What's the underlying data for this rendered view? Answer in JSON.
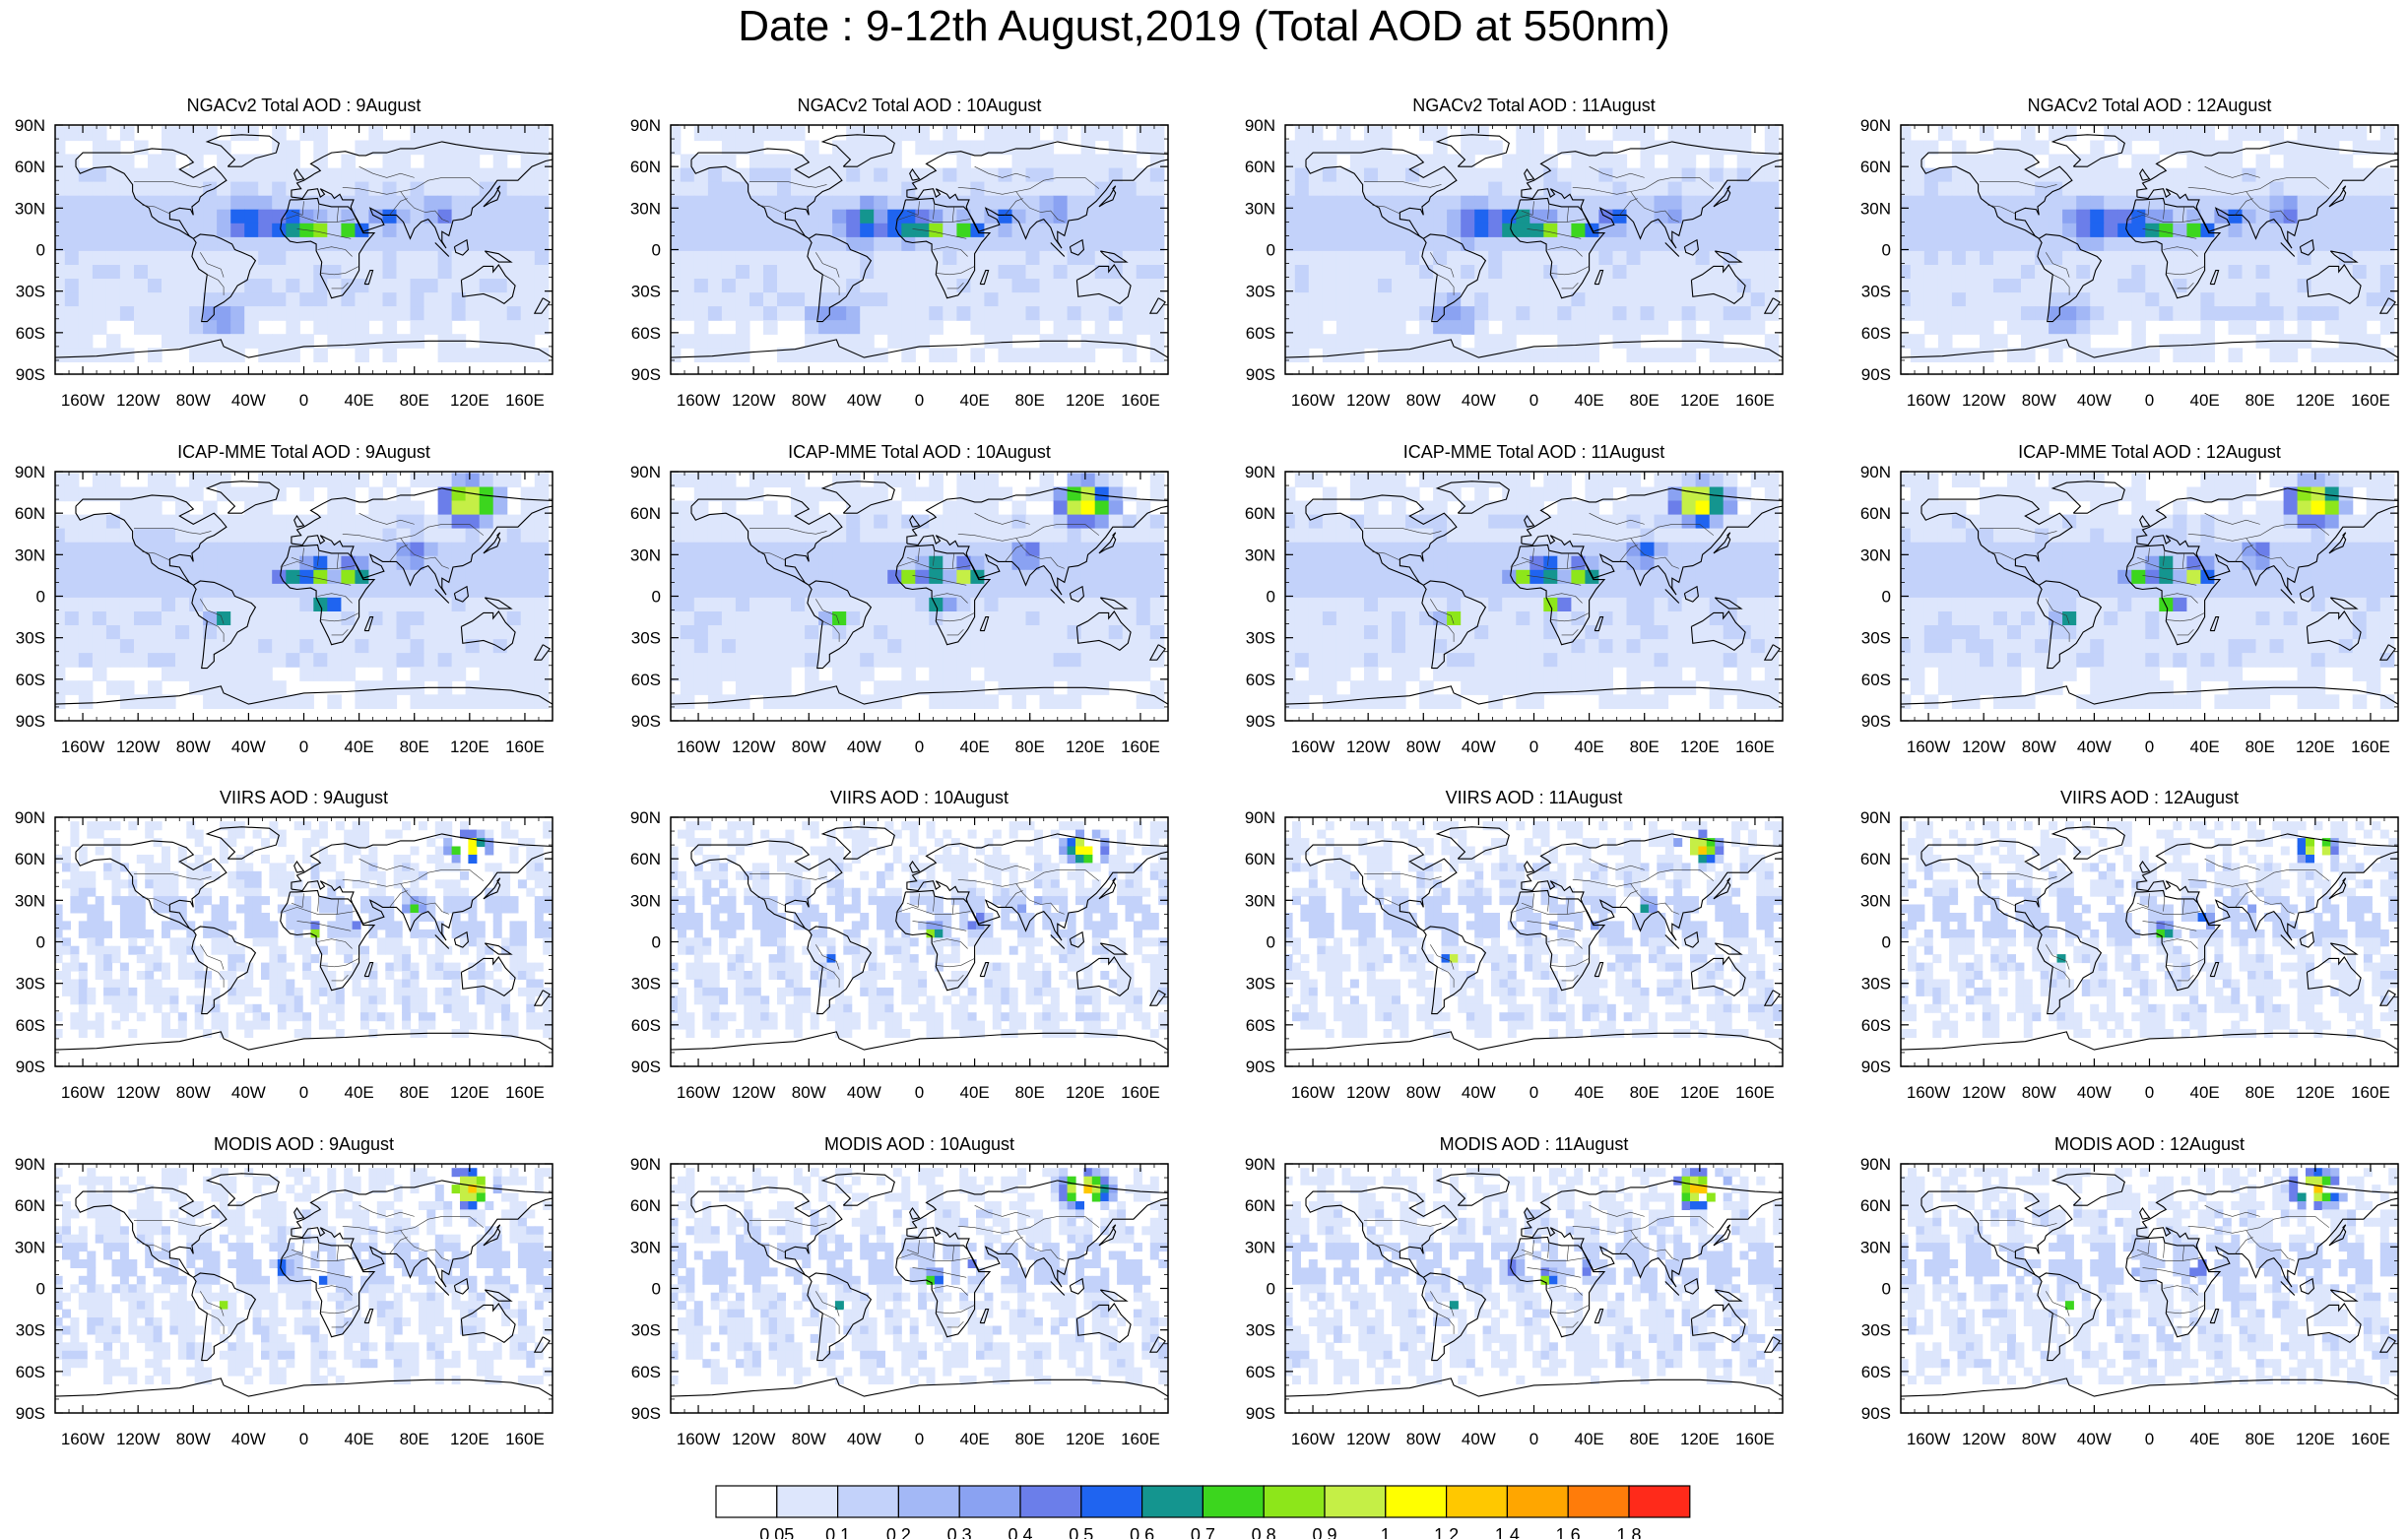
{
  "title": "Date : 9-12th August,2019 (Total AOD at 550nm)",
  "panels": [
    {
      "label": "NGACv2 Total AOD : 9August",
      "product": "NGACv2"
    },
    {
      "label": "NGACv2 Total AOD : 10August",
      "product": "NGACv2"
    },
    {
      "label": "NGACv2 Total AOD : 11August",
      "product": "NGACv2"
    },
    {
      "label": "NGACv2 Total AOD : 12August",
      "product": "NGACv2"
    },
    {
      "label": "ICAP-MME Total AOD : 9August",
      "product": "ICAP-MME"
    },
    {
      "label": "ICAP-MME Total AOD : 10August",
      "product": "ICAP-MME"
    },
    {
      "label": "ICAP-MME Total AOD : 11August",
      "product": "ICAP-MME"
    },
    {
      "label": "ICAP-MME Total AOD : 12August",
      "product": "ICAP-MME"
    },
    {
      "label": "VIIRS AOD : 9August",
      "product": "VIIRS"
    },
    {
      "label": "VIIRS AOD : 10August",
      "product": "VIIRS"
    },
    {
      "label": "VIIRS AOD : 11August",
      "product": "VIIRS"
    },
    {
      "label": "VIIRS AOD : 12August",
      "product": "VIIRS"
    },
    {
      "label": "MODIS AOD : 9August",
      "product": "MODIS"
    },
    {
      "label": "MODIS AOD : 10August",
      "product": "MODIS"
    },
    {
      "label": "MODIS AOD : 11August",
      "product": "MODIS"
    },
    {
      "label": "MODIS AOD : 12August",
      "product": "MODIS"
    }
  ],
  "lat_ticks": [
    "90N",
    "60N",
    "30N",
    "0",
    "30S",
    "60S",
    "90S"
  ],
  "lon_ticks": [
    "160W",
    "120W",
    "80W",
    "40W",
    "0",
    "40E",
    "80E",
    "120E",
    "160E"
  ],
  "colorbar": {
    "colors": [
      "#ffffff",
      "#dde6fc",
      "#c3d2fa",
      "#a3b8f6",
      "#8aa2f2",
      "#6b7eea",
      "#1f64f0",
      "#14958f",
      "#3cd61e",
      "#8de61a",
      "#c5ef46",
      "#ffff00",
      "#ffc800",
      "#ffa600",
      "#ff7c0a",
      "#ff2a1a"
    ],
    "labels": [
      "0.05",
      "0.1",
      "0.2",
      "0.3",
      "0.4",
      "0.5",
      "0.6",
      "0.7",
      "0.8",
      "0.9",
      "1",
      "1.2",
      "1.4",
      "1.6",
      "1.8"
    ]
  }
}
